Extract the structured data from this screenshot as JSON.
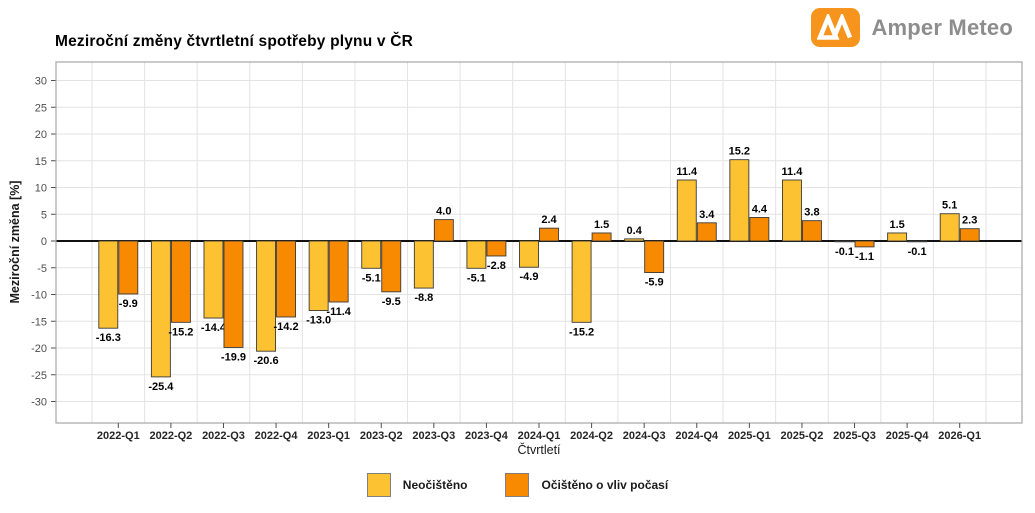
{
  "header": {
    "brand": {
      "name": "Amper Meteo",
      "icon": "amper-meteo-logo"
    }
  },
  "chart_data": {
    "type": "bar",
    "title": "Meziroční změny čtvrtletní spotřeby plynu v ČR",
    "xlabel": "Čtvrtletí",
    "ylabel": "Meziroční změna [%]",
    "ylim": [
      -30,
      30
    ],
    "ytick_step": 5,
    "grid": true,
    "legend_position": "bottom",
    "bar_value_labels": true,
    "categories": [
      "2022-Q1",
      "2022-Q2",
      "2022-Q3",
      "2022-Q4",
      "2023-Q1",
      "2023-Q2",
      "2023-Q3",
      "2023-Q4",
      "2024-Q1",
      "2024-Q2",
      "2024-Q3",
      "2024-Q4",
      "2025-Q1",
      "2025-Q2",
      "2025-Q3",
      "2025-Q4",
      "2026-Q1"
    ],
    "series": [
      {
        "name": "Neočištěno",
        "color": "#FCC231",
        "values": [
          -16.3,
          -25.4,
          -14.4,
          -20.6,
          -13.0,
          -5.1,
          -8.8,
          -5.1,
          -4.9,
          -15.2,
          0.4,
          11.4,
          15.2,
          11.4,
          -0.1,
          1.5,
          5.1
        ]
      },
      {
        "name": "Očištěno o vliv počasí",
        "color": "#F88A02",
        "values": [
          -9.9,
          -15.2,
          -19.9,
          -14.2,
          -11.4,
          -9.5,
          4.0,
          -2.8,
          2.4,
          1.5,
          -5.9,
          3.4,
          4.4,
          3.8,
          -1.1,
          -0.1,
          2.3
        ]
      }
    ]
  },
  "style": {
    "bar_stroke": "#3a3a3a",
    "grid_color": "#e3e3e3",
    "plot_border": "#a6a6a6",
    "zero_line": "#111111",
    "tick_mark_color": "#4d4d4d",
    "y_tick_label_color": "#4d4d4d",
    "x_tick_label_color": "#262626",
    "value_label_color": "#000000",
    "logo_orange": "#F7941D",
    "logo_text_gray": "#8D8D8D"
  }
}
